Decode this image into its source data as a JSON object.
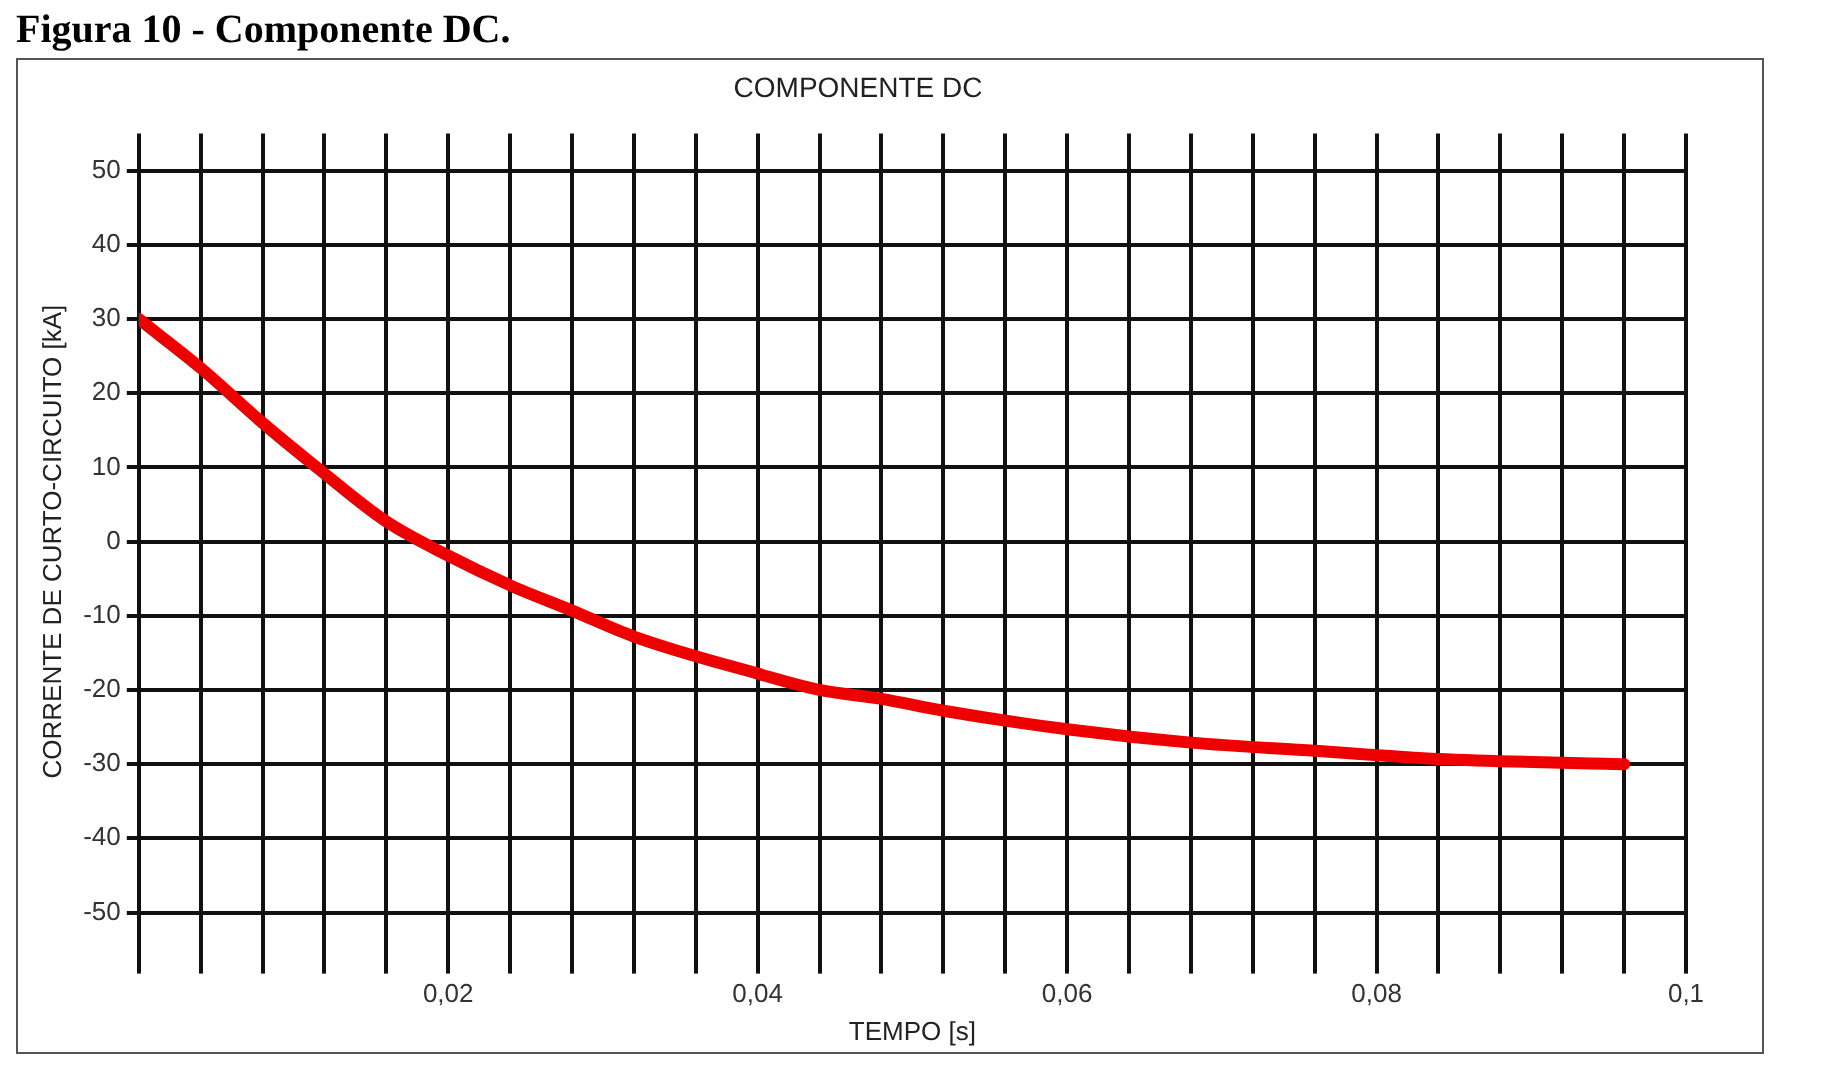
{
  "chart_data": {
    "type": "line",
    "title": "COMPONENTE DC",
    "xlabel": "TEMPO [s]",
    "ylabel": "CORRENTE DE CURTO-CIRCUITO [kA]",
    "annotations": [
      "Figura 10 - Componente DC."
    ],
    "x": [
      0,
      0.004,
      0.008,
      0.0115,
      0.016,
      0.02,
      0.024,
      0.028,
      0.032,
      0.04,
      0.044,
      0.048,
      0.052,
      0.06,
      0.068,
      0.076,
      0.084,
      0.096
    ],
    "series": [
      {
        "color": "#ee0000",
        "values": [
          30,
          23.4,
          16,
          10,
          2.7,
          -1.9,
          -5.9,
          -9.3,
          -12.8,
          -17.8,
          -20,
          -21.2,
          -22.8,
          -25.3,
          -27.1,
          -28.2,
          -29.3,
          -30
        ]
      }
    ],
    "xlim": [
      0,
      0.1
    ],
    "xticks": [
      {
        "value": 0,
        "label": null
      },
      {
        "value": 0.004,
        "label": null
      },
      {
        "value": 0.008,
        "label": null
      },
      {
        "value": 0.012,
        "label": null
      },
      {
        "value": 0.016,
        "label": null
      },
      {
        "value": 0.02,
        "label": "0,02"
      },
      {
        "value": 0.024,
        "label": null
      },
      {
        "value": 0.028,
        "label": null
      },
      {
        "value": 0.032,
        "label": null
      },
      {
        "value": 0.036,
        "label": null
      },
      {
        "value": 0.04,
        "label": "0,04"
      },
      {
        "value": 0.044,
        "label": null
      },
      {
        "value": 0.048,
        "label": null
      },
      {
        "value": 0.052,
        "label": null
      },
      {
        "value": 0.056,
        "label": null
      },
      {
        "value": 0.06,
        "label": "0,06"
      },
      {
        "value": 0.064,
        "label": null
      },
      {
        "value": 0.068,
        "label": null
      },
      {
        "value": 0.072,
        "label": null
      },
      {
        "value": 0.076,
        "label": null
      },
      {
        "value": 0.08,
        "label": "0,08"
      },
      {
        "value": 0.084,
        "label": null
      },
      {
        "value": 0.088,
        "label": null
      },
      {
        "value": 0.092,
        "label": null
      },
      {
        "value": 0.096,
        "label": null
      },
      {
        "value": 0.1,
        "label": "0,1"
      }
    ],
    "ylim": [
      -55,
      55
    ],
    "yticks": [
      -50,
      -40,
      -30,
      -20,
      -10,
      0,
      10,
      20,
      30,
      40,
      50
    ],
    "grid": true,
    "legend": false,
    "marker": "none",
    "line_style": "solid"
  }
}
